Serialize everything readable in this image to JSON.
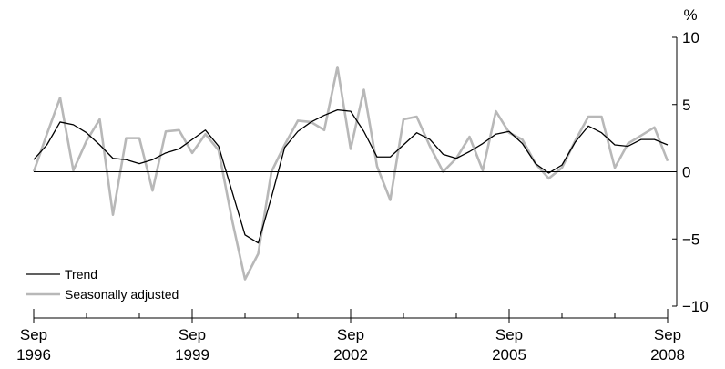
{
  "chart_data": {
    "type": "line",
    "title": "",
    "xlabel": "",
    "ylabel": "%",
    "ylim": [
      -10,
      10
    ],
    "yticks": [
      10,
      5,
      0,
      -5,
      -10
    ],
    "yticks_labels": [
      "10",
      "5",
      "0",
      "−5",
      "−10"
    ],
    "xlim": [
      "1996-09",
      "2008-09"
    ],
    "xticks": [
      {
        "month": "Sep",
        "year": "1996",
        "date": "1996-09"
      },
      {
        "month": "Sep",
        "year": "1999",
        "date": "1999-09"
      },
      {
        "month": "Sep",
        "year": "2002",
        "date": "2002-09"
      },
      {
        "month": "Sep",
        "year": "2005",
        "date": "2005-09"
      },
      {
        "month": "Sep",
        "year": "2008",
        "date": "2008-09"
      }
    ],
    "grid": false,
    "legend_position": "bottom-left",
    "x": [
      "1996-09",
      "1996-12",
      "1997-03",
      "1997-06",
      "1997-09",
      "1997-12",
      "1998-03",
      "1998-06",
      "1998-09",
      "1998-12",
      "1999-03",
      "1999-06",
      "1999-09",
      "1999-12",
      "2000-03",
      "2000-06",
      "2000-09",
      "2000-12",
      "2001-03",
      "2001-06",
      "2001-09",
      "2001-12",
      "2002-03",
      "2002-06",
      "2002-09",
      "2002-12",
      "2003-03",
      "2003-06",
      "2003-09",
      "2003-12",
      "2004-03",
      "2004-06",
      "2004-09",
      "2004-12",
      "2005-03",
      "2005-06",
      "2005-09",
      "2005-12",
      "2006-03",
      "2006-06",
      "2006-09",
      "2006-12",
      "2007-03",
      "2007-06",
      "2007-09",
      "2007-12",
      "2008-03",
      "2008-06",
      "2008-09"
    ],
    "series": [
      {
        "name": "Seasonally adjusted",
        "color": "#b8b8b8",
        "values": [
          0.0,
          2.8,
          5.5,
          0.1,
          2.3,
          3.9,
          -3.2,
          2.5,
          2.5,
          -1.4,
          3.0,
          3.1,
          1.4,
          2.8,
          1.6,
          -3.5,
          -8.0,
          -6.1,
          0.0,
          2.0,
          3.8,
          3.7,
          3.1,
          7.8,
          1.7,
          6.1,
          0.4,
          -2.1,
          3.9,
          4.1,
          1.9,
          0.0,
          1.0,
          2.6,
          0.1,
          4.5,
          2.9,
          2.4,
          0.6,
          -0.5,
          0.3,
          2.3,
          4.1,
          4.1,
          0.3,
          2.1,
          2.7,
          3.3,
          0.8
        ]
      },
      {
        "name": "Trend",
        "color": "#000000",
        "values": [
          0.9,
          2.0,
          3.7,
          3.5,
          2.9,
          2.0,
          1.0,
          0.9,
          0.6,
          0.9,
          1.4,
          1.7,
          2.4,
          3.1,
          1.9,
          -1.4,
          -4.7,
          -5.3,
          -1.9,
          1.8,
          3.0,
          3.7,
          4.2,
          4.6,
          4.5,
          3.0,
          1.1,
          1.1,
          2.0,
          2.9,
          2.4,
          1.3,
          1.0,
          1.5,
          2.1,
          2.8,
          3.0,
          2.1,
          0.6,
          -0.1,
          0.5,
          2.2,
          3.4,
          2.9,
          2.0,
          1.9,
          2.4,
          2.4,
          2.0
        ]
      }
    ]
  }
}
